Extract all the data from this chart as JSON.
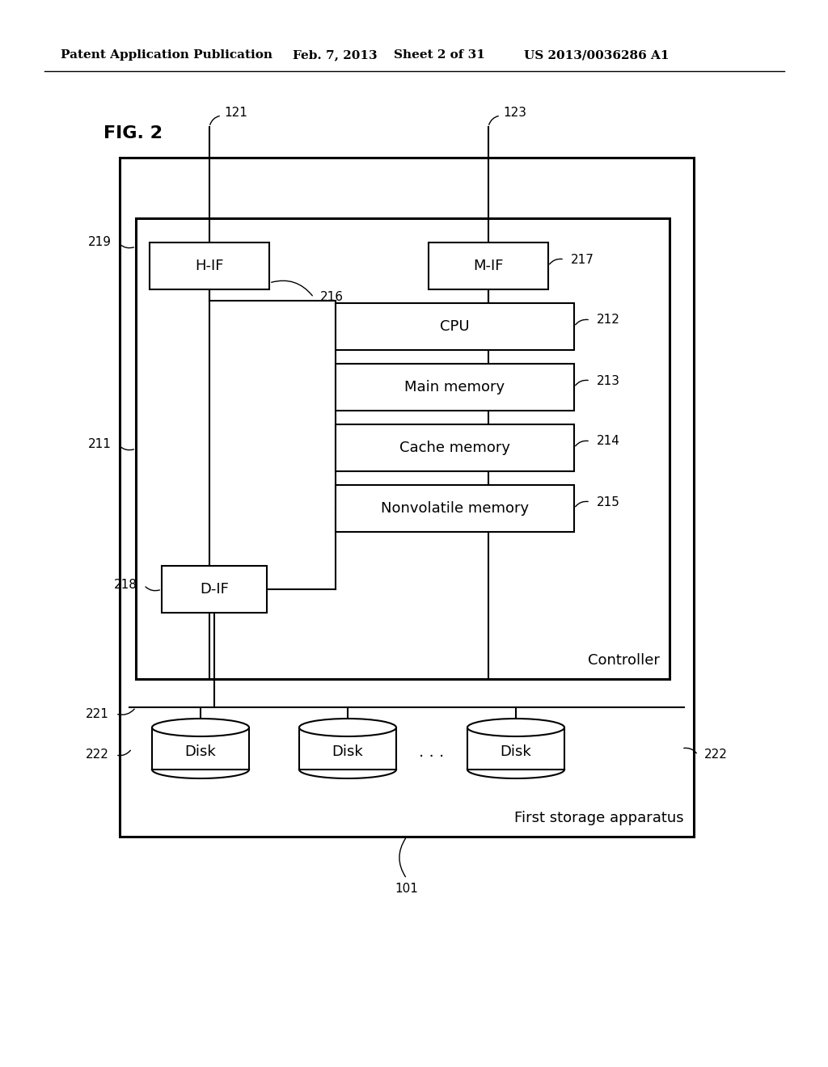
{
  "bg_color": "#ffffff",
  "header_text": "Patent Application Publication",
  "header_date": "Feb. 7, 2013",
  "header_sheet": "Sheet 2 of 31",
  "header_patent": "US 2013/0036286 A1",
  "fig_label": "FIG. 2",
  "controller_label": "Controller",
  "first_storage_label": "First storage apparatus",
  "boxes": {
    "HIF": {
      "label": "H-IF",
      "ref": "216"
    },
    "MIF": {
      "label": "M-IF",
      "ref": "217"
    },
    "CPU": {
      "label": "CPU",
      "ref": "212"
    },
    "MainMem": {
      "label": "Main memory",
      "ref": "213"
    },
    "CacheMem": {
      "label": "Cache memory",
      "ref": "214"
    },
    "NonvolMem": {
      "label": "Nonvolatile memory",
      "ref": "215"
    },
    "DIF": {
      "label": "D-IF",
      "ref": "218"
    }
  }
}
